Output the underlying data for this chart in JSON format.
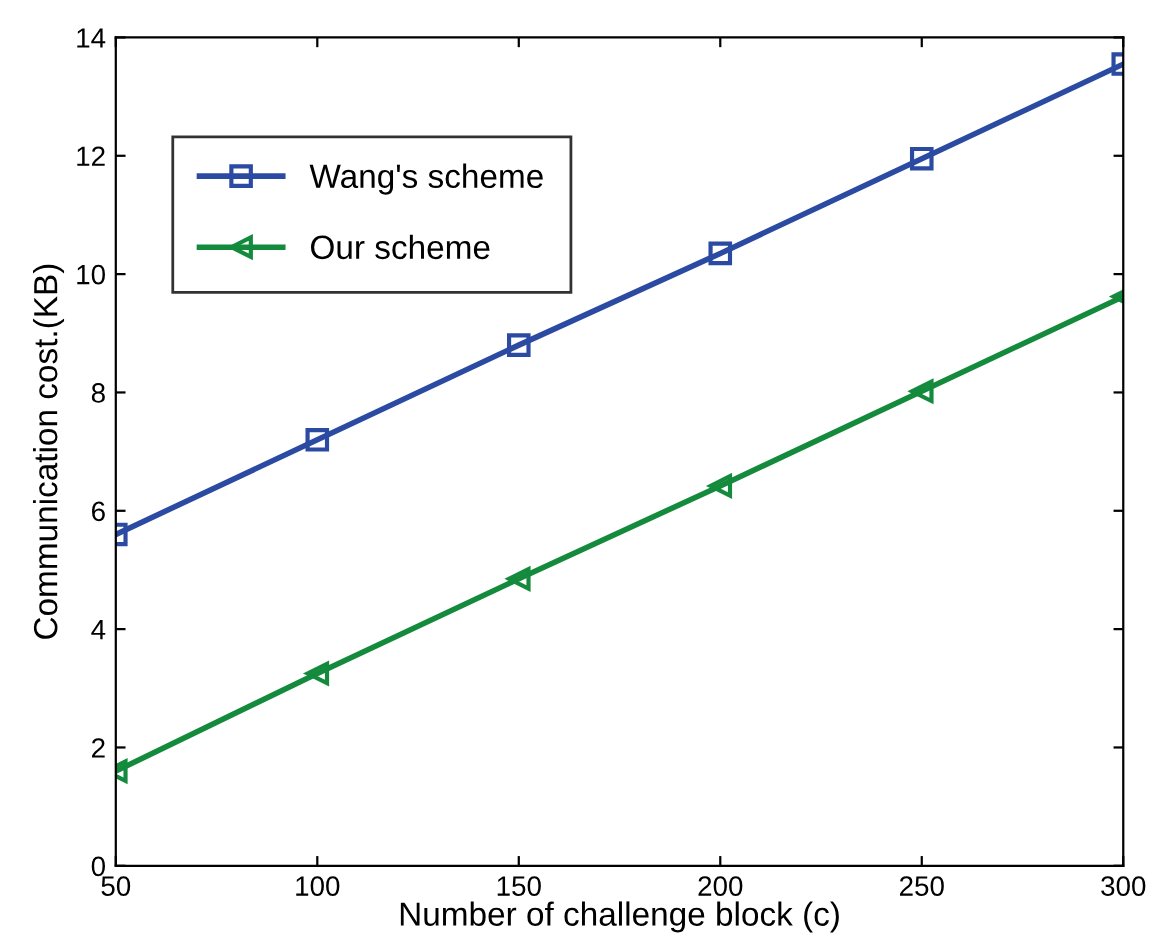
{
  "chart_data": {
    "type": "line",
    "xlabel": "Number of challenge block (c)",
    "ylabel": "Communication cost.(KB)",
    "x": [
      50,
      100,
      150,
      200,
      250,
      300
    ],
    "series": [
      {
        "name": "Wang's scheme",
        "color": "#2b4ba3",
        "marker": "square",
        "values": [
          5.6,
          7.2,
          8.8,
          10.35,
          11.95,
          13.55
        ]
      },
      {
        "name": "Our scheme",
        "color": "#148a3c",
        "marker": "triangle",
        "values": [
          1.6,
          3.25,
          4.85,
          6.42,
          8.02,
          9.62
        ]
      }
    ],
    "xlim": [
      50,
      300
    ],
    "xticks": [
      50,
      100,
      150,
      200,
      250,
      300
    ],
    "ylim": [
      0,
      14
    ],
    "yticks": [
      0,
      2,
      4,
      6,
      8,
      10,
      12,
      14
    ],
    "grid": false,
    "legend": "top left",
    "line_style": "solid"
  }
}
